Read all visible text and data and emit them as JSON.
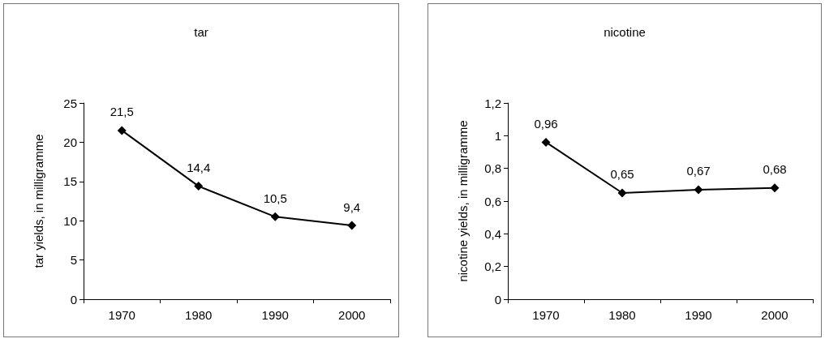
{
  "chart_data": [
    {
      "type": "line",
      "title": "tar",
      "ylabel": "tar yields, in milligramme",
      "categories": [
        "1970",
        "1980",
        "1990",
        "2000"
      ],
      "series": [
        {
          "color": "#000000",
          "values": [
            21.5,
            14.4,
            10.5,
            9.4
          ],
          "value_labels": [
            "21,5",
            "14,4",
            "10,5",
            "9,4"
          ]
        }
      ],
      "ylim": [
        0,
        25
      ],
      "yticks": [
        0,
        5,
        10,
        15,
        20,
        25
      ],
      "marker": "diamond",
      "line_style": "solid"
    },
    {
      "type": "line",
      "title": "nicotine",
      "ylabel": "nicotine yields, in milligramme",
      "categories": [
        "1970",
        "1980",
        "1990",
        "2000"
      ],
      "series": [
        {
          "color": "#000000",
          "values": [
            0.96,
            0.65,
            0.67,
            0.68
          ],
          "value_labels": [
            "0,96",
            "0,65",
            "0,67",
            "0,68"
          ]
        }
      ],
      "ylim": [
        0,
        1.2
      ],
      "yticks": [
        0,
        {
          "value": 0.2,
          "label": "0,2"
        },
        {
          "value": 0.4,
          "label": "0,4"
        },
        {
          "value": 0.6,
          "label": "0,6"
        },
        {
          "value": 0.8,
          "label": "0,8"
        },
        1,
        {
          "value": 1.2,
          "label": "1,2"
        }
      ],
      "marker": "diamond",
      "line_style": "solid"
    }
  ]
}
